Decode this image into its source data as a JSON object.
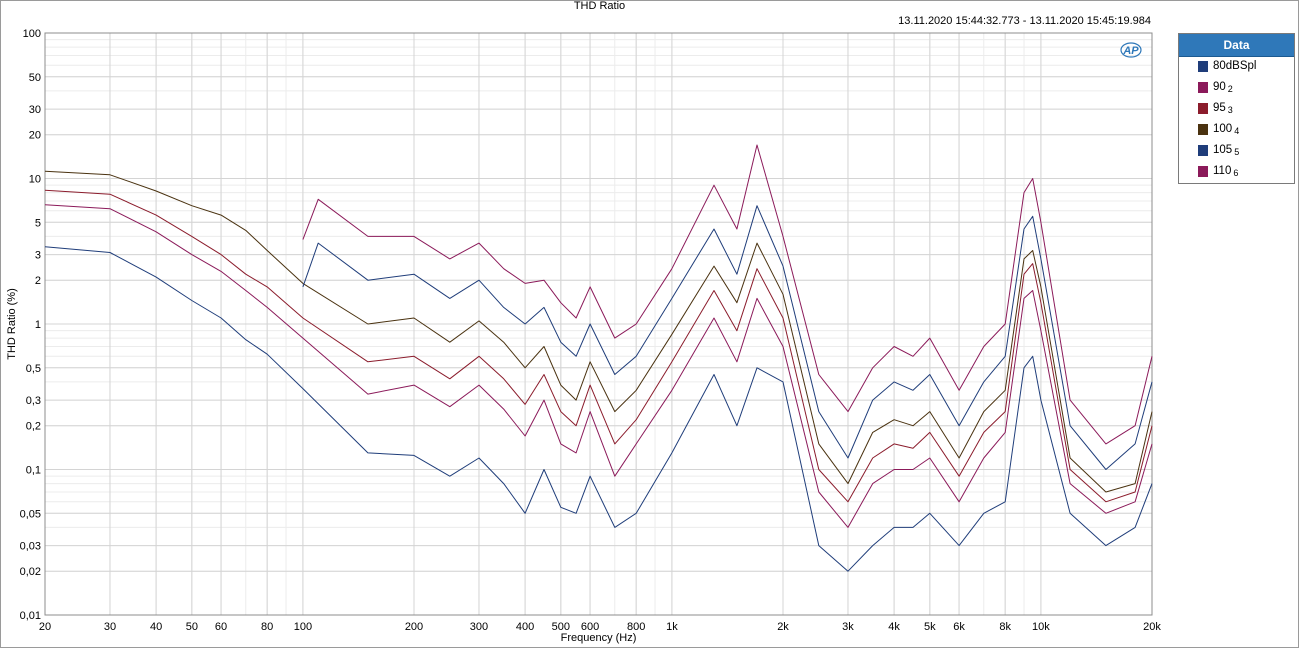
{
  "window": {
    "title": "THD Ratio",
    "timestamp": "13.11.2020 15:44:32.773 - 13.11.2020 15:45:19.984"
  },
  "logo": {
    "text": "AP",
    "icon": "ap-logo-icon",
    "color": "#2f78b9"
  },
  "legend": {
    "header": "Data",
    "items": [
      {
        "label": "80dBSpl",
        "sub": "",
        "color": "#1f3d7a"
      },
      {
        "label": "90",
        "sub": "2",
        "color": "#8b1a5a"
      },
      {
        "label": "95",
        "sub": "3",
        "color": "#8b1c2c"
      },
      {
        "label": "100",
        "sub": "4",
        "color": "#4a3210"
      },
      {
        "label": "105",
        "sub": "5",
        "color": "#1f3d7a"
      },
      {
        "label": "110",
        "sub": "6",
        "color": "#8b1a5a"
      }
    ]
  },
  "chart_data": {
    "type": "line",
    "title": "THD Ratio",
    "xlabel": "Frequency (Hz)",
    "ylabel": "THD Ratio (%)",
    "xscale": "log",
    "yscale": "log",
    "xlim": [
      20,
      20000
    ],
    "ylim": [
      0.01,
      100
    ],
    "grid": true,
    "legend_position": "right",
    "x_ticks": [
      {
        "v": 20,
        "l": "20"
      },
      {
        "v": 30,
        "l": "30"
      },
      {
        "v": 40,
        "l": "40"
      },
      {
        "v": 50,
        "l": "50"
      },
      {
        "v": 60,
        "l": "60"
      },
      {
        "v": 80,
        "l": "80"
      },
      {
        "v": 100,
        "l": "100"
      },
      {
        "v": 200,
        "l": "200"
      },
      {
        "v": 300,
        "l": "300"
      },
      {
        "v": 400,
        "l": "400"
      },
      {
        "v": 500,
        "l": "500"
      },
      {
        "v": 600,
        "l": "600"
      },
      {
        "v": 800,
        "l": "800"
      },
      {
        "v": 1000,
        "l": "1k"
      },
      {
        "v": 2000,
        "l": "2k"
      },
      {
        "v": 3000,
        "l": "3k"
      },
      {
        "v": 4000,
        "l": "4k"
      },
      {
        "v": 5000,
        "l": "5k"
      },
      {
        "v": 6000,
        "l": "6k"
      },
      {
        "v": 8000,
        "l": "8k"
      },
      {
        "v": 10000,
        "l": "10k"
      },
      {
        "v": 20000,
        "l": "20k"
      }
    ],
    "y_ticks": [
      {
        "v": 100,
        "l": "100"
      },
      {
        "v": 50,
        "l": "50"
      },
      {
        "v": 30,
        "l": "30"
      },
      {
        "v": 20,
        "l": "20"
      },
      {
        "v": 10,
        "l": "10"
      },
      {
        "v": 5,
        "l": "5"
      },
      {
        "v": 3,
        "l": "3"
      },
      {
        "v": 2,
        "l": "2"
      },
      {
        "v": 1,
        "l": "1"
      },
      {
        "v": 0.5,
        "l": "0,5"
      },
      {
        "v": 0.3,
        "l": "0,3"
      },
      {
        "v": 0.2,
        "l": "0,2"
      },
      {
        "v": 0.1,
        "l": "0,1"
      },
      {
        "v": 0.05,
        "l": "0,05"
      },
      {
        "v": 0.03,
        "l": "0,03"
      },
      {
        "v": 0.02,
        "l": "0,02"
      },
      {
        "v": 0.01,
        "l": "0,01"
      }
    ],
    "series": [
      {
        "name": "80dBSpl",
        "color": "#1f3d7a",
        "x": [
          20,
          30,
          40,
          50,
          60,
          70,
          80,
          100,
          150,
          200,
          250,
          300,
          350,
          400,
          450,
          500,
          550,
          600,
          700,
          800,
          1000,
          1300,
          1500,
          1700,
          2000,
          2500,
          3000,
          3500,
          4000,
          4500,
          5000,
          6000,
          7000,
          8000,
          9000,
          9500,
          10000,
          12000,
          15000,
          18000,
          20000
        ],
        "y": [
          3.4,
          3.1,
          2.1,
          1.45,
          1.1,
          0.78,
          0.62,
          0.36,
          0.13,
          0.125,
          0.09,
          0.12,
          0.08,
          0.05,
          0.1,
          0.055,
          0.05,
          0.09,
          0.04,
          0.05,
          0.13,
          0.45,
          0.2,
          0.5,
          0.4,
          0.03,
          0.02,
          0.03,
          0.04,
          0.04,
          0.05,
          0.03,
          0.05,
          0.06,
          0.5,
          0.6,
          0.3,
          0.05,
          0.03,
          0.04,
          0.08
        ]
      },
      {
        "name": "90",
        "color": "#8b1a5a",
        "x": [
          20,
          30,
          40,
          50,
          60,
          70,
          80,
          100,
          150,
          200,
          250,
          300,
          350,
          400,
          450,
          500,
          550,
          600,
          700,
          800,
          1000,
          1300,
          1500,
          1700,
          2000,
          2500,
          3000,
          3500,
          4000,
          4500,
          5000,
          6000,
          7000,
          8000,
          9000,
          9500,
          10000,
          12000,
          15000,
          18000,
          20000
        ],
        "y": [
          6.6,
          6.2,
          4.3,
          3.0,
          2.3,
          1.7,
          1.3,
          0.8,
          0.33,
          0.38,
          0.27,
          0.38,
          0.26,
          0.17,
          0.3,
          0.15,
          0.13,
          0.25,
          0.09,
          0.15,
          0.35,
          1.1,
          0.55,
          1.5,
          0.7,
          0.07,
          0.04,
          0.08,
          0.1,
          0.1,
          0.12,
          0.06,
          0.12,
          0.18,
          1.5,
          1.7,
          0.9,
          0.08,
          0.05,
          0.06,
          0.15
        ]
      },
      {
        "name": "95",
        "color": "#8b1c2c",
        "x": [
          20,
          30,
          40,
          50,
          60,
          70,
          80,
          100,
          150,
          200,
          250,
          300,
          350,
          400,
          450,
          500,
          550,
          600,
          700,
          800,
          1000,
          1300,
          1500,
          1700,
          2000,
          2500,
          3000,
          3500,
          4000,
          4500,
          5000,
          6000,
          7000,
          8000,
          9000,
          9500,
          10000,
          12000,
          15000,
          18000,
          20000
        ],
        "y": [
          8.3,
          7.8,
          5.6,
          4.0,
          3.0,
          2.2,
          1.8,
          1.1,
          0.55,
          0.6,
          0.42,
          0.6,
          0.42,
          0.28,
          0.45,
          0.25,
          0.2,
          0.38,
          0.15,
          0.22,
          0.55,
          1.7,
          0.9,
          2.4,
          1.1,
          0.1,
          0.06,
          0.12,
          0.15,
          0.14,
          0.18,
          0.09,
          0.18,
          0.25,
          2.2,
          2.6,
          1.4,
          0.1,
          0.06,
          0.07,
          0.2
        ]
      },
      {
        "name": "100",
        "color": "#4a3210",
        "x": [
          20,
          30,
          40,
          50,
          60,
          70,
          80,
          100,
          150,
          200,
          250,
          300,
          350,
          400,
          450,
          500,
          550,
          600,
          700,
          800,
          1000,
          1300,
          1500,
          1700,
          2000,
          2500,
          3000,
          3500,
          4000,
          4500,
          5000,
          6000,
          7000,
          8000,
          9000,
          9500,
          10000,
          12000,
          15000,
          18000,
          20000
        ],
        "y": [
          11.2,
          10.6,
          8.2,
          6.5,
          5.6,
          4.4,
          3.2,
          1.9,
          1.0,
          1.1,
          0.75,
          1.05,
          0.75,
          0.5,
          0.7,
          0.38,
          0.3,
          0.55,
          0.25,
          0.35,
          0.85,
          2.5,
          1.4,
          3.6,
          1.6,
          0.15,
          0.08,
          0.18,
          0.22,
          0.2,
          0.25,
          0.12,
          0.25,
          0.35,
          2.8,
          3.2,
          1.8,
          0.12,
          0.07,
          0.08,
          0.25
        ]
      },
      {
        "name": "105",
        "color": "#1f3d7a",
        "x": [
          100,
          110,
          150,
          200,
          250,
          300,
          350,
          400,
          450,
          500,
          550,
          600,
          700,
          800,
          1000,
          1300,
          1500,
          1700,
          2000,
          2500,
          3000,
          3500,
          4000,
          4500,
          5000,
          6000,
          7000,
          8000,
          9000,
          9500,
          10000,
          12000,
          15000,
          18000,
          20000
        ],
        "y": [
          1.8,
          3.6,
          2.0,
          2.2,
          1.5,
          2.0,
          1.3,
          1.0,
          1.3,
          0.75,
          0.6,
          1.0,
          0.45,
          0.6,
          1.5,
          4.5,
          2.2,
          6.5,
          2.5,
          0.25,
          0.12,
          0.3,
          0.4,
          0.35,
          0.45,
          0.2,
          0.4,
          0.6,
          4.5,
          5.5,
          2.8,
          0.2,
          0.1,
          0.15,
          0.4
        ]
      },
      {
        "name": "110",
        "color": "#8b1a5a",
        "x": [
          100,
          110,
          150,
          200,
          250,
          300,
          350,
          400,
          450,
          500,
          550,
          600,
          700,
          800,
          1000,
          1300,
          1500,
          1700,
          2000,
          2500,
          3000,
          3500,
          4000,
          4500,
          5000,
          6000,
          7000,
          8000,
          9000,
          9500,
          10000,
          12000,
          15000,
          18000,
          20000
        ],
        "y": [
          3.8,
          7.2,
          4.0,
          4.0,
          2.8,
          3.6,
          2.4,
          1.9,
          2.0,
          1.4,
          1.1,
          1.8,
          0.8,
          1.0,
          2.4,
          9.0,
          4.5,
          17.0,
          4.0,
          0.45,
          0.25,
          0.5,
          0.7,
          0.6,
          0.8,
          0.35,
          0.7,
          1.0,
          8.0,
          10.0,
          5.0,
          0.3,
          0.15,
          0.2,
          0.6
        ]
      }
    ]
  }
}
